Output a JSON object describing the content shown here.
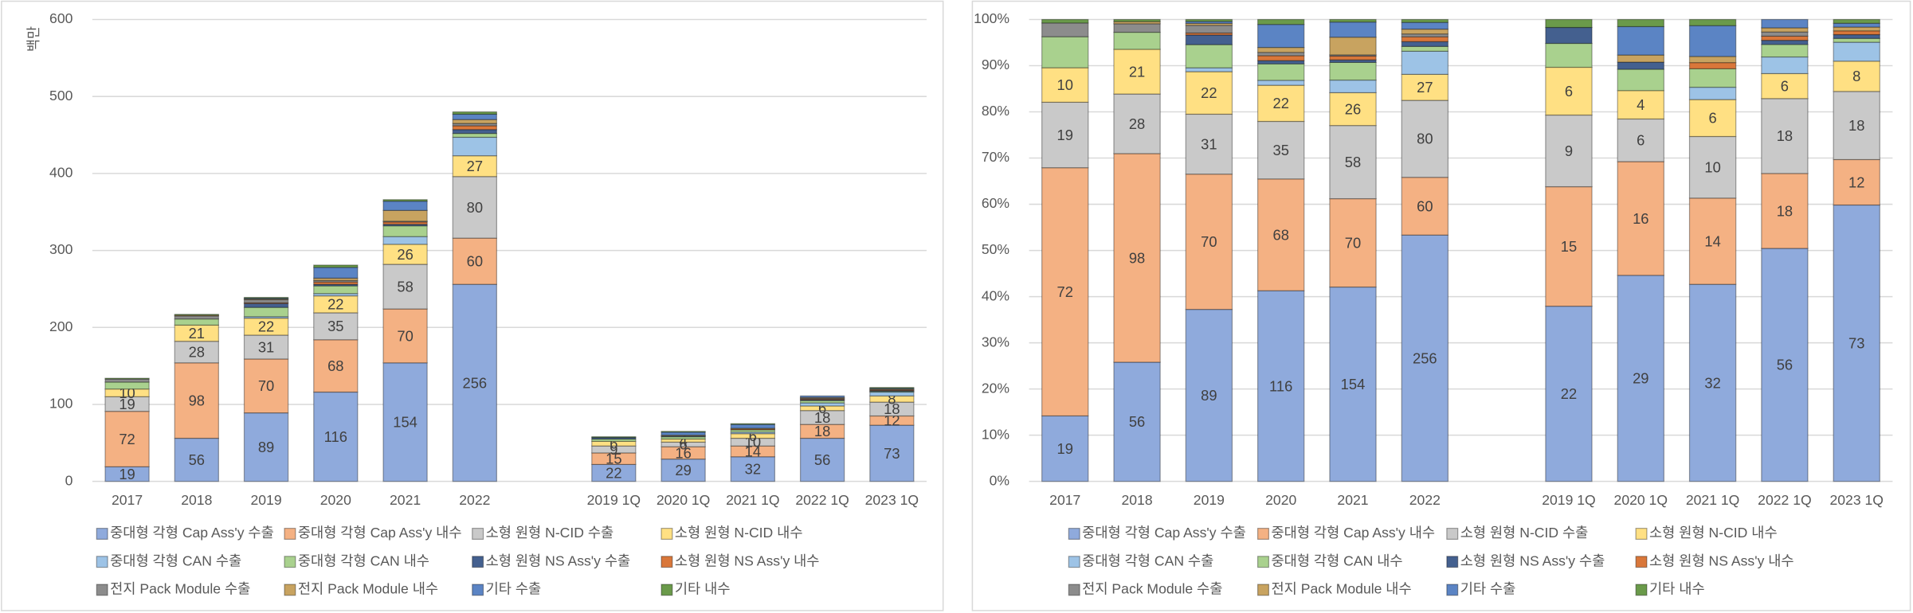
{
  "chart_data": [
    {
      "type": "bar",
      "stacked": true,
      "ylabel": "백만",
      "categories": [
        "2017",
        "2018",
        "2019",
        "2020",
        "2021",
        "2022",
        null,
        "2019 1Q",
        "2020 1Q",
        "2021 1Q",
        "2022 1Q",
        "2023 1Q"
      ],
      "ylim": [
        0,
        600
      ],
      "yticks": [
        0,
        100,
        200,
        300,
        400,
        500,
        600
      ],
      "grid": true,
      "legend": "bottom",
      "series": [
        {
          "name": "중대형 각형 Cap Ass'y 수출",
          "color": "#8faadc",
          "data_labels": true,
          "values": [
            19,
            56,
            89,
            116,
            154,
            256,
            null,
            22,
            29,
            32,
            56,
            73
          ]
        },
        {
          "name": "중대형 각형 Cap Ass'y 내수",
          "color": "#f4b183",
          "data_labels": true,
          "values": [
            72,
            98,
            70,
            68,
            70,
            60,
            null,
            15,
            16,
            14,
            18,
            12
          ]
        },
        {
          "name": "소형 원형 N-CID 수출",
          "color": "#c9c9c9",
          "data_labels": true,
          "values": [
            19,
            28,
            31,
            35,
            58,
            80,
            null,
            9,
            6,
            10,
            18,
            18
          ]
        },
        {
          "name": "소형 원형 N-CID 내수",
          "color": "#ffe083",
          "data_labels": true,
          "values": [
            10,
            21,
            22,
            22,
            26,
            27,
            null,
            6,
            4,
            6,
            6,
            8
          ]
        },
        {
          "name": "중대형 각형 CAN 수출",
          "color": "#9dc3e6",
          "values": [
            0,
            0,
            2,
            3,
            10,
            24,
            null,
            0,
            0,
            2,
            4,
            5
          ]
        },
        {
          "name": "중대형 각형 CAN 내수",
          "color": "#a9d18e",
          "values": [
            9,
            8,
            12,
            10,
            14,
            5,
            null,
            3,
            3,
            3,
            3,
            1
          ]
        },
        {
          "name": "소형 원형 NS Ass'y 수출",
          "color": "#44608f",
          "values": [
            0,
            0,
            5,
            2,
            2,
            5,
            null,
            2,
            1,
            0,
            1,
            1
          ]
        },
        {
          "name": "소형 원형 NS Ass'y 내수",
          "color": "#d9773a",
          "values": [
            0,
            0,
            1,
            3,
            3,
            5,
            null,
            0,
            0,
            1,
            1,
            1
          ]
        },
        {
          "name": "전지 Pack Module 수출",
          "color": "#8c8c8c",
          "values": [
            4,
            4,
            4,
            2,
            1,
            3,
            null,
            0,
            0,
            0,
            1,
            0
          ]
        },
        {
          "name": "전지 Pack Module 내수",
          "color": "#c8a360",
          "values": [
            0,
            1,
            1,
            3,
            14,
            5,
            null,
            0,
            1,
            1,
            1,
            1
          ]
        },
        {
          "name": "기타 수출",
          "color": "#5b84c4",
          "values": [
            0,
            0,
            1,
            14,
            12,
            7,
            null,
            0,
            4,
            5,
            2,
            1
          ]
        },
        {
          "name": "기타 내수",
          "color": "#6a9a4a",
          "values": [
            1,
            1,
            1,
            3,
            2,
            3,
            null,
            1,
            1,
            1,
            0,
            1
          ]
        }
      ]
    },
    {
      "type": "bar",
      "stacked": "percent",
      "categories": [
        "2017",
        "2018",
        "2019",
        "2020",
        "2021",
        "2022",
        null,
        "2019 1Q",
        "2020 1Q",
        "2021 1Q",
        "2022 1Q",
        "2023 1Q"
      ],
      "ylim": [
        0,
        100
      ],
      "yticks": [
        {
          "value": 0,
          "label": "0%"
        },
        {
          "value": 10,
          "label": "10%"
        },
        {
          "value": 20,
          "label": "20%"
        },
        {
          "value": 30,
          "label": "30%"
        },
        {
          "value": 40,
          "label": "40%"
        },
        {
          "value": 50,
          "label": "50%"
        },
        {
          "value": 60,
          "label": "60%"
        },
        {
          "value": 70,
          "label": "70%"
        },
        {
          "value": 80,
          "label": "80%"
        },
        {
          "value": 90,
          "label": "90%"
        },
        {
          "value": 100,
          "label": "100%"
        }
      ],
      "grid": true,
      "legend": "bottom",
      "series": [
        {
          "name": "중대형 각형 Cap Ass'y 수출",
          "color": "#8faadc",
          "data_labels": true,
          "values": [
            19,
            56,
            89,
            116,
            154,
            256,
            null,
            22,
            29,
            32,
            56,
            73
          ]
        },
        {
          "name": "중대형 각형 Cap Ass'y 내수",
          "color": "#f4b183",
          "data_labels": true,
          "values": [
            72,
            98,
            70,
            68,
            70,
            60,
            null,
            15,
            16,
            14,
            18,
            12
          ]
        },
        {
          "name": "소형 원형 N-CID 수출",
          "color": "#c9c9c9",
          "data_labels": true,
          "values": [
            19,
            28,
            31,
            35,
            58,
            80,
            null,
            9,
            6,
            10,
            18,
            18
          ]
        },
        {
          "name": "소형 원형 N-CID 내수",
          "color": "#ffe083",
          "data_labels": true,
          "values": [
            10,
            21,
            22,
            22,
            26,
            27,
            null,
            6,
            4,
            6,
            6,
            8
          ]
        },
        {
          "name": "중대형 각형 CAN 수출",
          "color": "#9dc3e6",
          "values": [
            0,
            0,
            2,
            3,
            10,
            24,
            null,
            0,
            0,
            2,
            4,
            5
          ]
        },
        {
          "name": "중대형 각형 CAN 내수",
          "color": "#a9d18e",
          "values": [
            9,
            8,
            12,
            10,
            14,
            5,
            null,
            3,
            3,
            3,
            3,
            1
          ]
        },
        {
          "name": "소형 원형 NS Ass'y 수출",
          "color": "#44608f",
          "values": [
            0,
            0,
            5,
            2,
            2,
            5,
            null,
            2,
            1,
            0,
            1,
            1
          ]
        },
        {
          "name": "소형 원형 NS Ass'y 내수",
          "color": "#d9773a",
          "values": [
            0,
            0,
            1,
            3,
            3,
            5,
            null,
            0,
            0,
            1,
            1,
            1
          ]
        },
        {
          "name": "전지 Pack Module 수출",
          "color": "#8c8c8c",
          "values": [
            4,
            4,
            4,
            2,
            1,
            3,
            null,
            0,
            0,
            0,
            1,
            0
          ]
        },
        {
          "name": "전지 Pack Module 내수",
          "color": "#c8a360",
          "values": [
            0,
            1,
            1,
            3,
            14,
            5,
            null,
            0,
            1,
            1,
            1,
            1
          ]
        },
        {
          "name": "기타 수출",
          "color": "#5b84c4",
          "values": [
            0,
            0,
            1,
            14,
            12,
            7,
            null,
            0,
            4,
            5,
            2,
            1
          ]
        },
        {
          "name": "기타 내수",
          "color": "#6a9a4a",
          "values": [
            1,
            1,
            1,
            3,
            2,
            3,
            null,
            1,
            1,
            1,
            0,
            1
          ]
        }
      ]
    }
  ]
}
